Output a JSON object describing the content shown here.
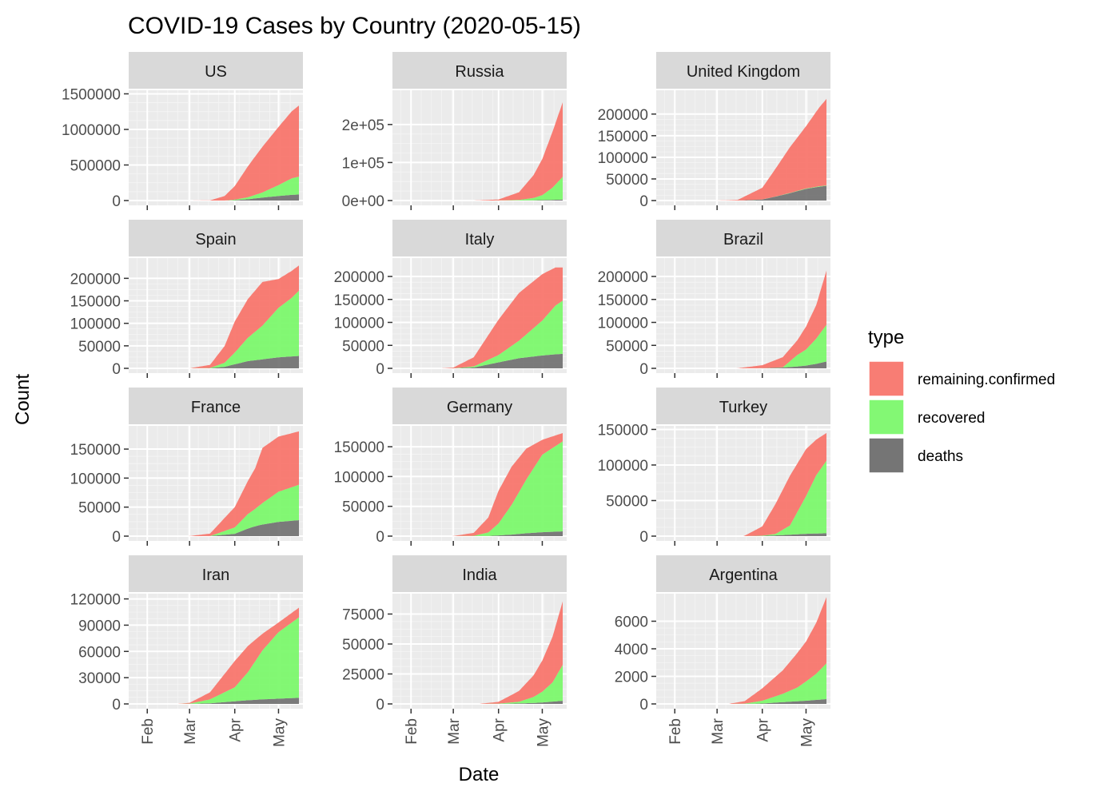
{
  "chart_data": {
    "type": "area",
    "title": "COVID-19 Cases by Country (2020-05-15)",
    "xlabel": "Date",
    "ylabel": "Count",
    "x_tick_labels": [
      "Feb",
      "Mar",
      "Apr",
      "May"
    ],
    "x_ticks": [
      "2020-02-01",
      "2020-03-01",
      "2020-04-01",
      "2020-05-01"
    ],
    "xlim": [
      "2020-01-22",
      "2020-05-15"
    ],
    "grid": true,
    "stacked": true,
    "legend": {
      "title": "type",
      "position": "right",
      "entries": [
        {
          "label": "remaining.confirmed",
          "color": "#F8766D"
        },
        {
          "label": "recovered",
          "color": "#7CF86D"
        },
        {
          "label": "deaths",
          "color": "#6E6E6E"
        }
      ]
    },
    "panels": [
      {
        "name": "US",
        "ylim": [
          0,
          1550000
        ],
        "yticks": [
          0,
          500000,
          1000000,
          1500000
        ],
        "ytick_labels": [
          "0",
          "500000",
          "1000000",
          "1500000"
        ],
        "dates": [
          "2020-03-01",
          "2020-03-15",
          "2020-03-25",
          "2020-04-01",
          "2020-04-10",
          "2020-04-20",
          "2020-05-01",
          "2020-05-10",
          "2020-05-15"
        ],
        "remaining_confirmed": [
          70,
          3000,
          63000,
          190000,
          435000,
          643000,
          818000,
          941000,
          1000000
        ],
        "recovered": [
          0,
          0,
          0,
          8000,
          28000,
          72000,
          153000,
          232000,
          250000
        ],
        "deaths": [
          0,
          0,
          0,
          5000,
          18000,
          42000,
          64000,
          80000,
          86000
        ]
      },
      {
        "name": "Russia",
        "ylim": [
          0,
          290000
        ],
        "yticks": [
          0,
          100000,
          200000
        ],
        "ytick_labels": [
          "0e+00",
          "1e+05",
          "2e+05"
        ],
        "dates": [
          "2020-03-15",
          "2020-04-01",
          "2020-04-15",
          "2020-04-25",
          "2020-05-01",
          "2020-05-08",
          "2020-05-15"
        ],
        "remaining_confirmed": [
          60,
          2700,
          20000,
          60000,
          95000,
          147000,
          196000
        ],
        "recovered": [
          0,
          100,
          1500,
          6000,
          13000,
          32000,
          60000
        ],
        "deaths": [
          0,
          20,
          200,
          700,
          1200,
          1800,
          2500
        ]
      },
      {
        "name": "United Kingdom",
        "ylim": [
          0,
          255000
        ],
        "yticks": [
          0,
          50000,
          100000,
          150000,
          200000
        ],
        "ytick_labels": [
          "0",
          "50000",
          "100000",
          "150000",
          "200000"
        ],
        "dates": [
          "2020-03-01",
          "2020-03-15",
          "2020-04-01",
          "2020-04-10",
          "2020-04-20",
          "2020-05-01",
          "2020-05-10",
          "2020-05-15"
        ],
        "remaining_confirmed": [
          35,
          1300,
          27000,
          64000,
          106000,
          144000,
          182000,
          200000
        ],
        "recovered": [
          0,
          20,
          150,
          300,
          600,
          900,
          1000,
          1000
        ],
        "deaths": [
          0,
          40,
          2400,
          9000,
          17000,
          27000,
          32000,
          34000
        ]
      },
      {
        "name": "Spain",
        "ylim": [
          0,
          245000
        ],
        "yticks": [
          0,
          50000,
          100000,
          150000,
          200000
        ],
        "ytick_labels": [
          "0",
          "50000",
          "100000",
          "150000",
          "200000"
        ],
        "dates": [
          "2020-03-01",
          "2020-03-15",
          "2020-03-25",
          "2020-04-01",
          "2020-04-10",
          "2020-04-20",
          "2020-05-01",
          "2020-05-10",
          "2020-05-15"
        ],
        "remaining_confirmed": [
          80,
          6800,
          37000,
          69000,
          86000,
          97000,
          64000,
          60000,
          56000
        ],
        "recovered": [
          0,
          500,
          9000,
          26000,
          52000,
          75000,
          110000,
          130000,
          145000
        ],
        "deaths": [
          0,
          300,
          3400,
          9000,
          16000,
          20000,
          24500,
          26500,
          27500
        ]
      },
      {
        "name": "Italy",
        "ylim": [
          0,
          240000
        ],
        "yticks": [
          0,
          50000,
          100000,
          150000,
          200000
        ],
        "ytick_labels": [
          "0",
          "50000",
          "100000",
          "150000",
          "200000"
        ],
        "dates": [
          "2020-02-22",
          "2020-03-01",
          "2020-03-15",
          "2020-04-01",
          "2020-04-15",
          "2020-05-01",
          "2020-05-10",
          "2020-05-15"
        ],
        "remaining_confirmed": [
          70,
          1600,
          20000,
          77000,
          104000,
          101000,
          83000,
          72000
        ],
        "recovered": [
          0,
          80,
          2300,
          16000,
          38000,
          76000,
          106000,
          116000
        ],
        "deaths": [
          0,
          30,
          1800,
          13000,
          22000,
          28000,
          30500,
          31500
        ]
      },
      {
        "name": "Brazil",
        "ylim": [
          0,
          240000
        ],
        "yticks": [
          0,
          50000,
          100000,
          150000,
          200000
        ],
        "ytick_labels": [
          "0",
          "50000",
          "100000",
          "150000",
          "200000"
        ],
        "dates": [
          "2020-03-15",
          "2020-04-01",
          "2020-04-15",
          "2020-04-25",
          "2020-05-01",
          "2020-05-08",
          "2020-05-15"
        ],
        "remaining_confirmed": [
          200,
          6500,
          22000,
          32000,
          50000,
          73000,
          118000
        ],
        "recovered": [
          0,
          100,
          500,
          25000,
          35000,
          55000,
          80000
        ],
        "deaths": [
          0,
          200,
          1700,
          4000,
          6000,
          9800,
          14800
        ]
      },
      {
        "name": "France",
        "ylim": [
          0,
          190000
        ],
        "yticks": [
          0,
          50000,
          100000,
          150000
        ],
        "ytick_labels": [
          "0",
          "50000",
          "100000",
          "150000"
        ],
        "dates": [
          "2020-03-01",
          "2020-03-15",
          "2020-04-01",
          "2020-04-10",
          "2020-04-15",
          "2020-04-20",
          "2020-05-01",
          "2020-05-15"
        ],
        "remaining_confirmed": [
          130,
          4200,
          35000,
          57000,
          70000,
          95000,
          95000,
          92000
        ],
        "recovered": [
          0,
          20,
          11000,
          25000,
          30000,
          37000,
          52000,
          61000
        ],
        "deaths": [
          0,
          100,
          4000,
          13000,
          17000,
          20000,
          24500,
          27500
        ]
      },
      {
        "name": "Germany",
        "ylim": [
          0,
          185000
        ],
        "yticks": [
          0,
          50000,
          100000,
          150000
        ],
        "ytick_labels": [
          "0",
          "50000",
          "100000",
          "150000"
        ],
        "dates": [
          "2020-03-01",
          "2020-03-15",
          "2020-03-25",
          "2020-04-01",
          "2020-04-10",
          "2020-04-20",
          "2020-05-01",
          "2020-05-15"
        ],
        "remaining_confirmed": [
          150,
          5000,
          25000,
          55000,
          64000,
          52000,
          25000,
          14000
        ],
        "recovered": [
          0,
          500,
          6000,
          20000,
          50000,
          90000,
          130000,
          151000
        ],
        "deaths": [
          0,
          20,
          200,
          1200,
          2600,
          4800,
          6600,
          8000
        ]
      },
      {
        "name": "Turkey",
        "ylim": [
          0,
          155000
        ],
        "yticks": [
          0,
          50000,
          100000,
          150000
        ],
        "ytick_labels": [
          "0",
          "50000",
          "100000",
          "150000"
        ],
        "dates": [
          "2020-03-20",
          "2020-04-01",
          "2020-04-10",
          "2020-04-20",
          "2020-05-01",
          "2020-05-08",
          "2020-05-15"
        ],
        "remaining_confirmed": [
          670,
          13000,
          42000,
          70000,
          66000,
          50000,
          39000
        ],
        "recovered": [
          0,
          400,
          2000,
          13000,
          53000,
          82000,
          102000
        ],
        "deaths": [
          0,
          300,
          1000,
          2000,
          3300,
          3700,
          4000
        ]
      },
      {
        "name": "Iran",
        "ylim": [
          0,
          126000
        ],
        "yticks": [
          0,
          30000,
          60000,
          90000,
          120000
        ],
        "ytick_labels": [
          "0",
          "30000",
          "60000",
          "90000",
          "120000"
        ],
        "dates": [
          "2020-02-22",
          "2020-03-01",
          "2020-03-15",
          "2020-04-01",
          "2020-04-10",
          "2020-04-20",
          "2020-05-01",
          "2020-05-15"
        ],
        "remaining_confirmed": [
          30,
          900,
          8000,
          30000,
          30000,
          19000,
          11000,
          11000
        ],
        "recovered": [
          0,
          300,
          4500,
          16000,
          32000,
          56000,
          76000,
          92000
        ],
        "deaths": [
          0,
          50,
          700,
          3000,
          4200,
          5200,
          6000,
          7000
        ]
      },
      {
        "name": "India",
        "ylim": [
          0,
          92000
        ],
        "yticks": [
          0,
          25000,
          50000,
          75000
        ],
        "ytick_labels": [
          "0",
          "25000",
          "50000",
          "75000"
        ],
        "dates": [
          "2020-03-20",
          "2020-04-01",
          "2020-04-15",
          "2020-04-25",
          "2020-05-01",
          "2020-05-08",
          "2020-05-15"
        ],
        "remaining_confirmed": [
          200,
          1500,
          9000,
          18000,
          26000,
          38000,
          53000
        ],
        "recovered": [
          0,
          200,
          1400,
          5000,
          9000,
          16000,
          30000
        ],
        "deaths": [
          0,
          40,
          400,
          800,
          1200,
          1900,
          2600
        ]
      },
      {
        "name": "Argentina",
        "ylim": [
          0,
          8000
        ],
        "yticks": [
          0,
          2000,
          4000,
          6000
        ],
        "ytick_labels": [
          "0",
          "2000",
          "4000",
          "6000"
        ],
        "dates": [
          "2020-03-10",
          "2020-03-20",
          "2020-04-01",
          "2020-04-15",
          "2020-04-25",
          "2020-05-01",
          "2020-05-08",
          "2020-05-15"
        ],
        "remaining_confirmed": [
          20,
          180,
          900,
          1700,
          2500,
          2900,
          3700,
          4800
        ],
        "recovered": [
          0,
          20,
          200,
          600,
          1000,
          1400,
          1900,
          2600
        ],
        "deaths": [
          0,
          5,
          30,
          130,
          190,
          230,
          290,
          350
        ]
      }
    ]
  }
}
